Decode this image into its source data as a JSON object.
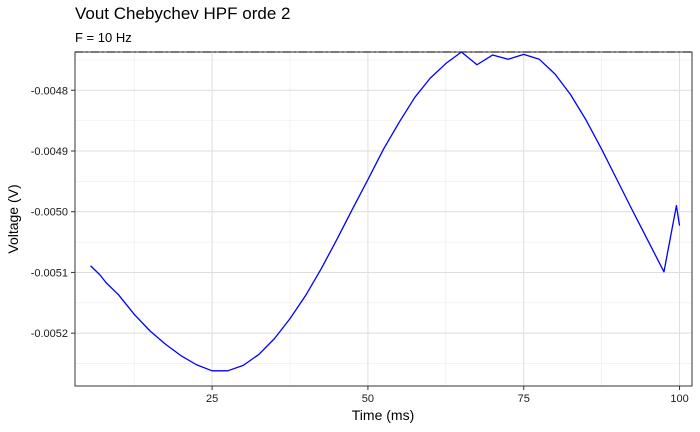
{
  "chart_data": {
    "type": "line",
    "title": "Vout Chebychev HPF orde 2",
    "subtitle": "F = 10 Hz",
    "xlabel": "Time (ms)",
    "ylabel": "Voltage (V)",
    "xlim": [
      3,
      102
    ],
    "ylim": [
      -0.005287,
      -0.004737
    ],
    "x_ticks": [
      25,
      50,
      75,
      100
    ],
    "x_tick_labels": [
      "25",
      "50",
      "75",
      "100"
    ],
    "y_ticks": [
      -0.0048,
      -0.0049,
      -0.005,
      -0.0051,
      -0.0052
    ],
    "y_tick_labels": [
      "-0.0048",
      "-0.0049",
      "-0.0050",
      "-0.0051",
      "-0.0052"
    ],
    "grid": true,
    "series": [
      {
        "color": "#0000ff",
        "x": [
          5.5,
          7,
          8,
          10,
          12.5,
          15,
          17.5,
          20,
          22.5,
          25,
          27.5,
          30,
          32.5,
          35,
          37.5,
          40,
          42.5,
          45,
          47.5,
          50,
          52.5,
          55,
          57.5,
          60,
          62.5,
          65,
          67.5,
          70,
          72.5,
          75,
          77.5,
          80,
          82.5,
          85,
          87.5,
          90,
          92.5,
          95,
          97.5,
          99.5,
          100
        ],
        "y": [
          -0.005089,
          -0.005104,
          -0.005117,
          -0.005137,
          -0.005169,
          -0.005196,
          -0.005218,
          -0.005237,
          -0.005252,
          -0.005262,
          -0.005262,
          -0.005253,
          -0.005235,
          -0.005209,
          -0.005176,
          -0.005138,
          -0.005094,
          -0.005046,
          -0.004996,
          -0.004947,
          -0.004897,
          -0.004853,
          -0.004812,
          -0.00478,
          -0.004756,
          -0.004737,
          -0.004758,
          -0.004742,
          -0.004749,
          -0.004741,
          -0.004749,
          -0.004773,
          -0.004807,
          -0.004849,
          -0.004897,
          -0.004948,
          -0.004999,
          -0.005049,
          -0.005099,
          -0.00499,
          -0.005023
        ]
      }
    ],
    "reference_lines": [
      {
        "orientation": "horizontal",
        "y": -0.004737,
        "style": "dashdot",
        "color": "#000000"
      }
    ]
  }
}
